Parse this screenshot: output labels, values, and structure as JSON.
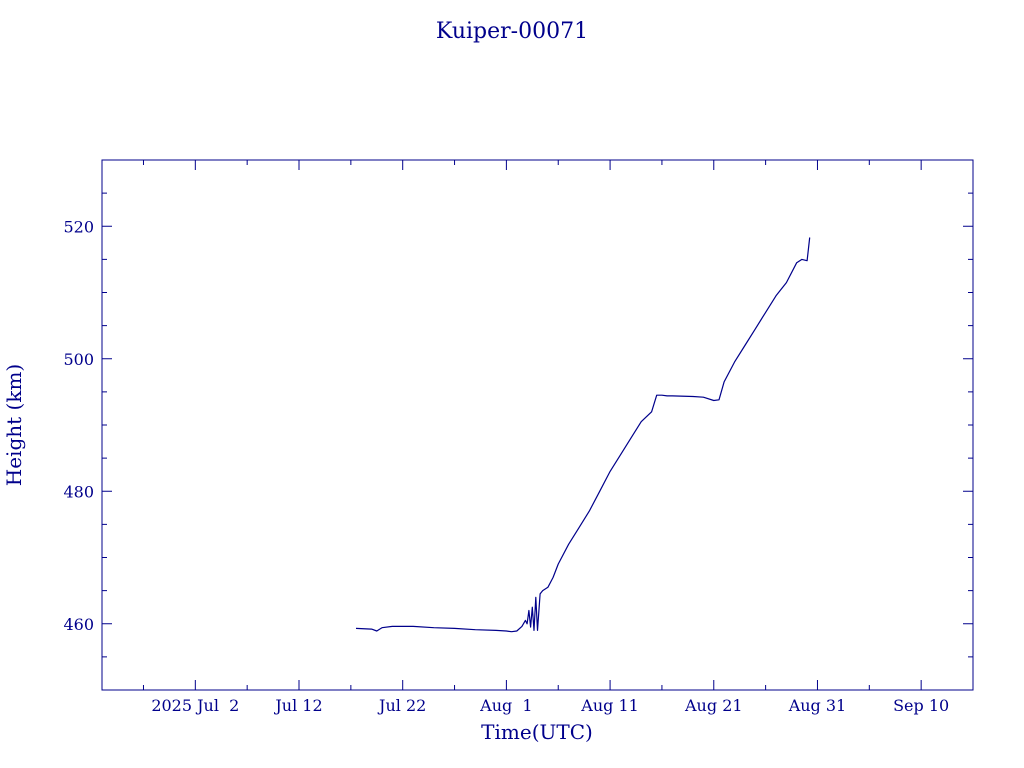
{
  "chart_data": {
    "type": "line",
    "title": "Kuiper-00071",
    "xlabel": "Time(UTC)",
    "ylabel": "Height (km)",
    "x_axis_type": "date",
    "xlim": [
      "2025-06-23",
      "2025-09-15"
    ],
    "ylim": [
      450,
      530
    ],
    "x_ticks": [
      {
        "date": "2025-07-02",
        "label": "2025 Jul  2"
      },
      {
        "date": "2025-07-12",
        "label": "Jul 12"
      },
      {
        "date": "2025-07-22",
        "label": "Jul 22"
      },
      {
        "date": "2025-08-01",
        "label": "Aug  1"
      },
      {
        "date": "2025-08-11",
        "label": "Aug 11"
      },
      {
        "date": "2025-08-21",
        "label": "Aug 21"
      },
      {
        "date": "2025-08-31",
        "label": "Aug 31"
      },
      {
        "date": "2025-09-10",
        "label": "Sep 10"
      }
    ],
    "y_ticks": [
      460,
      480,
      500,
      520
    ],
    "grid": false,
    "color": "#00008b",
    "series": [
      {
        "name": "",
        "x": [
          "2025-07-17 12:00",
          "2025-07-19 00:00",
          "2025-07-19 12:00",
          "2025-07-20 00:00",
          "2025-07-21 00:00",
          "2025-07-23 00:00",
          "2025-07-25 00:00",
          "2025-07-27 00:00",
          "2025-07-29 00:00",
          "2025-07-31 00:00",
          "2025-08-01 00:00",
          "2025-08-01 12:00",
          "2025-08-02 00:00",
          "2025-08-02 12:00",
          "2025-08-02 20:00",
          "2025-08-03 00:00",
          "2025-08-03 04:00",
          "2025-08-03 08:00",
          "2025-08-03 12:00",
          "2025-08-03 16:00",
          "2025-08-03 20:00",
          "2025-08-04 00:00",
          "2025-08-04 06:00",
          "2025-08-04 12:00",
          "2025-08-05 00:00",
          "2025-08-05 12:00",
          "2025-08-06 00:00",
          "2025-08-07 00:00",
          "2025-08-08 00:00",
          "2025-08-09 00:00",
          "2025-08-10 00:00",
          "2025-08-11 00:00",
          "2025-08-12 00:00",
          "2025-08-13 00:00",
          "2025-08-14 00:00",
          "2025-08-15 00:00",
          "2025-08-15 12:00",
          "2025-08-16 00:00",
          "2025-08-16 12:00",
          "2025-08-17 00:00",
          "2025-08-19 00:00",
          "2025-08-20 00:00",
          "2025-08-21 00:00",
          "2025-08-21 12:00",
          "2025-08-22 00:00",
          "2025-08-23 00:00",
          "2025-08-24 00:00",
          "2025-08-25 00:00",
          "2025-08-26 00:00",
          "2025-08-27 00:00",
          "2025-08-28 00:00",
          "2025-08-29 00:00",
          "2025-08-29 12:00",
          "2025-08-30 00:00",
          "2025-08-30 06:00"
        ],
        "y": [
          459.3,
          459.2,
          458.9,
          459.4,
          459.6,
          459.6,
          459.4,
          459.3,
          459.1,
          459.0,
          458.9,
          458.8,
          458.9,
          459.6,
          460.5,
          460.0,
          462.0,
          459.5,
          462.5,
          459.0,
          464.0,
          459.0,
          464.5,
          465.0,
          465.5,
          467.0,
          469.0,
          472.0,
          474.5,
          477.0,
          480.0,
          483.0,
          485.5,
          488.0,
          490.5,
          492.0,
          494.5,
          494.5,
          494.4,
          494.4,
          494.3,
          494.2,
          493.7,
          493.8,
          496.5,
          499.5,
          502.0,
          504.5,
          507.0,
          509.5,
          511.5,
          514.5,
          515.0,
          514.8,
          518.3
        ]
      }
    ]
  }
}
